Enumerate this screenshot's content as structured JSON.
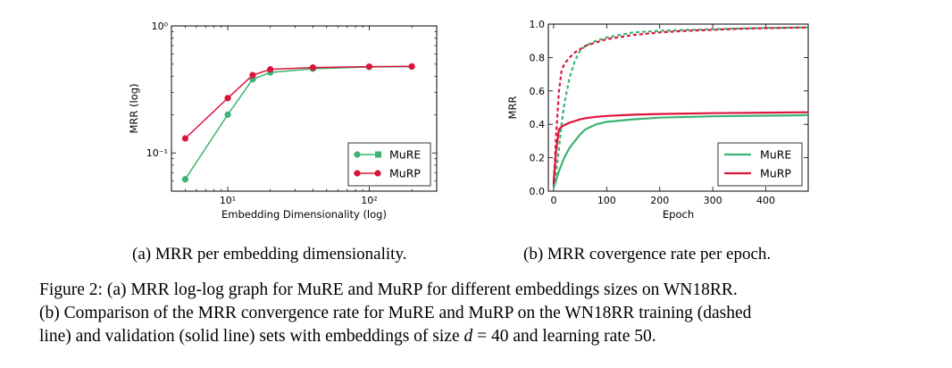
{
  "chart_data": [
    {
      "id": "a",
      "type": "line",
      "xscale": "log",
      "yscale": "log",
      "xlabel": "Embedding Dimensionality (log)",
      "ylabel": "MRR (log)",
      "xlim": [
        4,
        300
      ],
      "ylim": [
        0.05,
        1.0
      ],
      "xticks": [
        {
          "value": 10,
          "label": "10¹"
        },
        {
          "value": 100,
          "label": "10²"
        }
      ],
      "yticks": [
        {
          "value": 0.1,
          "label": "10⁻¹"
        },
        {
          "value": 1.0,
          "label": "10⁰"
        }
      ],
      "x": [
        5,
        10,
        15,
        20,
        40,
        100,
        200
      ],
      "series": [
        {
          "name": "MuRE",
          "color": "#3cb371",
          "marker": "square",
          "values": [
            0.062,
            0.2,
            0.38,
            0.43,
            0.46,
            0.475,
            0.478
          ]
        },
        {
          "name": "MuRP",
          "color": "#dc143c",
          "marker": "circle",
          "values": [
            0.13,
            0.27,
            0.41,
            0.455,
            0.47,
            0.478,
            0.48
          ]
        }
      ],
      "legend": "lower-right"
    },
    {
      "id": "b",
      "type": "line",
      "xlabel": "Epoch",
      "ylabel": "MRR",
      "xlim": [
        -10,
        480
      ],
      "ylim": [
        0.0,
        1.0
      ],
      "xticks": [
        0,
        100,
        200,
        300,
        400
      ],
      "yticks": [
        0.0,
        0.2,
        0.4,
        0.6,
        0.8,
        1.0
      ],
      "series": [
        {
          "name": "MuRE",
          "split": "train",
          "style": "dashed",
          "color": "#3cb371",
          "x": [
            0,
            5,
            10,
            15,
            20,
            25,
            30,
            40,
            50,
            60,
            80,
            100,
            150,
            200,
            250,
            300,
            350,
            400,
            480
          ],
          "values": [
            0.02,
            0.12,
            0.25,
            0.4,
            0.52,
            0.6,
            0.68,
            0.78,
            0.84,
            0.87,
            0.9,
            0.92,
            0.95,
            0.96,
            0.965,
            0.97,
            0.974,
            0.977,
            0.98
          ]
        },
        {
          "name": "MuRP",
          "split": "train",
          "style": "dashed",
          "color": "#dc143c",
          "x": [
            0,
            5,
            10,
            15,
            20,
            25,
            30,
            40,
            50,
            60,
            80,
            100,
            150,
            200,
            250,
            300,
            350,
            400,
            480
          ],
          "values": [
            0.03,
            0.35,
            0.6,
            0.72,
            0.76,
            0.78,
            0.8,
            0.83,
            0.85,
            0.87,
            0.89,
            0.91,
            0.935,
            0.95,
            0.96,
            0.966,
            0.972,
            0.976,
            0.98
          ]
        },
        {
          "name": "MuRE",
          "split": "validation",
          "style": "solid",
          "color": "#3cb371",
          "x": [
            0,
            5,
            10,
            15,
            20,
            30,
            40,
            50,
            60,
            80,
            100,
            150,
            200,
            300,
            400,
            480
          ],
          "values": [
            0.02,
            0.07,
            0.12,
            0.16,
            0.2,
            0.26,
            0.3,
            0.34,
            0.37,
            0.4,
            0.415,
            0.43,
            0.44,
            0.448,
            0.452,
            0.455
          ]
        },
        {
          "name": "MuRP",
          "split": "validation",
          "style": "solid",
          "color": "#dc143c",
          "x": [
            0,
            5,
            10,
            15,
            20,
            30,
            40,
            50,
            60,
            80,
            100,
            150,
            200,
            300,
            400,
            480
          ],
          "values": [
            0.05,
            0.25,
            0.37,
            0.385,
            0.395,
            0.41,
            0.42,
            0.43,
            0.437,
            0.445,
            0.45,
            0.458,
            0.462,
            0.467,
            0.47,
            0.472
          ]
        }
      ],
      "legend_entries": [
        {
          "name": "MuRE",
          "color": "#3cb371"
        },
        {
          "name": "MuRP",
          "color": "#dc143c"
        }
      ],
      "legend": "lower-right"
    }
  ],
  "subcaptions": {
    "a": "(a) MRR per embedding dimensionality.",
    "b": "(b) MRR covergence rate per epoch."
  },
  "caption": {
    "line1": "Figure 2: (a) MRR log-log graph for MuRE and MuRP for different embeddings sizes on WN18RR.",
    "line2": "(b) Comparison of the MRR convergence rate for MuRE and MuRP on the WN18RR training (dashed",
    "line3_pre": "line) and validation (solid line) sets with embeddings of size ",
    "line3_var": "d",
    "line3_post": " = 40 and learning rate 50."
  }
}
